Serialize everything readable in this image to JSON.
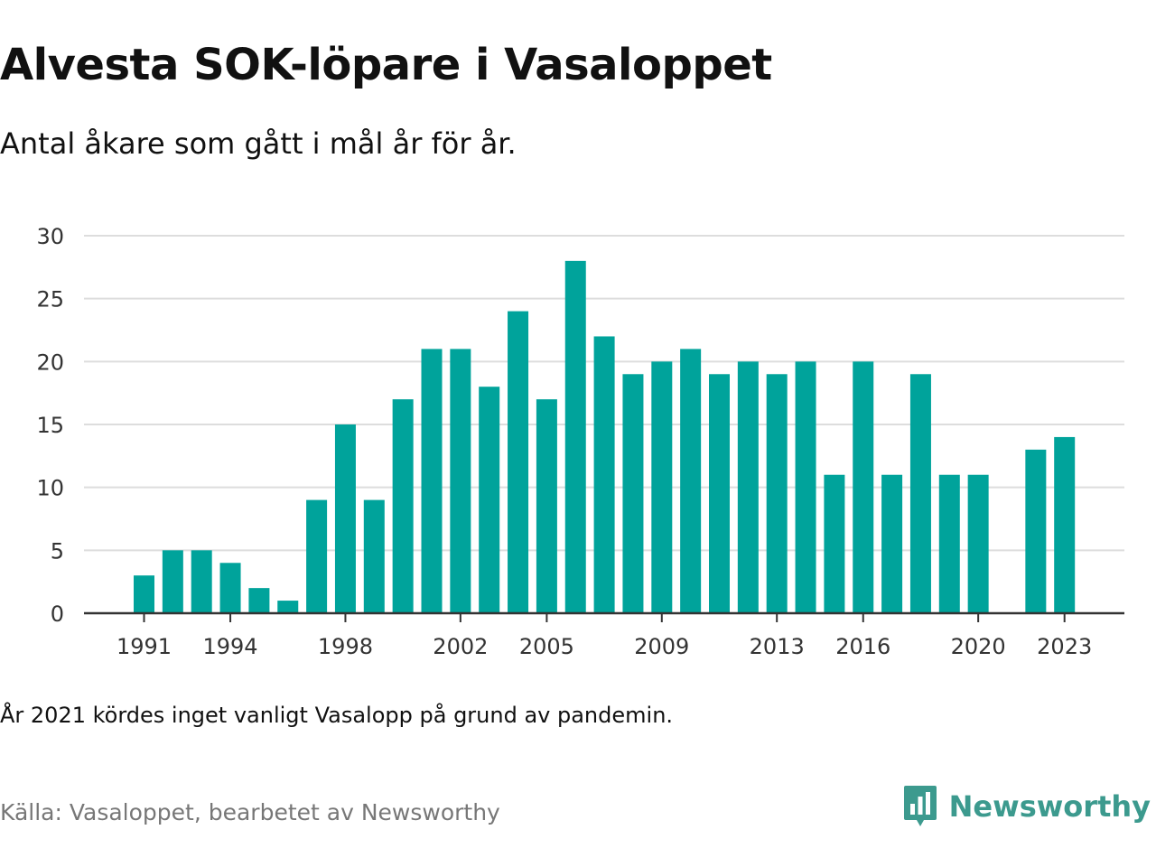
{
  "title": "Alvesta SOK-löpare i Vasaloppet",
  "subtitle": "Antal åkare som gått i mål år för år.",
  "note": "År 2021 kördes inget vanligt Vasalopp på grund av pandemin.",
  "source": "Källa: Vasaloppet, bearbetet av Newsworthy",
  "brand": {
    "name": "Newsworthy",
    "logo_icon": "newsworthy-chart-bubble-icon"
  },
  "colors": {
    "bar": "#00a39b",
    "grid": "#dddddd",
    "axis": "#333333",
    "brand": "#3c9a8e"
  },
  "chart_data": {
    "type": "bar",
    "categories": [
      1991,
      1992,
      1993,
      1994,
      1995,
      1996,
      1997,
      1998,
      1999,
      2000,
      2001,
      2002,
      2003,
      2004,
      2005,
      2006,
      2007,
      2008,
      2009,
      2010,
      2011,
      2012,
      2013,
      2014,
      2015,
      2016,
      2017,
      2018,
      2019,
      2020,
      2021,
      2022,
      2023
    ],
    "values": [
      3,
      5,
      5,
      4,
      2,
      1,
      9,
      15,
      9,
      17,
      21,
      21,
      18,
      24,
      17,
      28,
      22,
      19,
      20,
      21,
      19,
      20,
      19,
      20,
      11,
      20,
      11,
      19,
      11,
      11,
      null,
      13,
      14
    ],
    "x_tick_labels": [
      "1991",
      "1994",
      "1998",
      "2002",
      "2005",
      "2009",
      "2013",
      "2016",
      "2020",
      "2023"
    ],
    "y_ticks": [
      0,
      5,
      10,
      15,
      20,
      25,
      30
    ],
    "ylim": [
      0,
      30
    ],
    "grid": true,
    "xlabel": "",
    "ylabel": ""
  }
}
